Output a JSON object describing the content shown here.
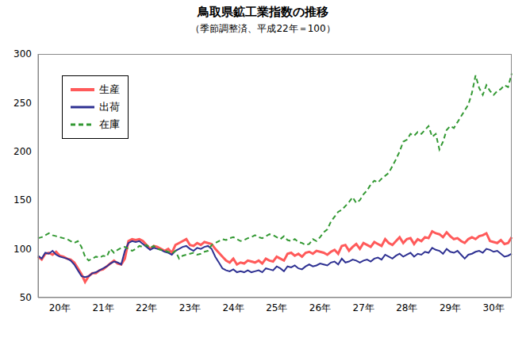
{
  "chart_data": {
    "type": "line",
    "title": "鳥取県鉱工業指数の推移",
    "subtitle": "（季節調整済、平成22年＝100）",
    "categories": [
      null,
      null,
      null,
      null,
      null,
      null,
      "20年",
      null,
      null,
      null,
      null,
      null,
      null,
      null,
      null,
      null,
      null,
      null,
      "21年",
      null,
      null,
      null,
      null,
      null,
      null,
      null,
      null,
      null,
      null,
      null,
      "22年",
      null,
      null,
      null,
      null,
      null,
      null,
      null,
      null,
      null,
      null,
      null,
      "23年",
      null,
      null,
      null,
      null,
      null,
      null,
      null,
      null,
      null,
      null,
      null,
      "24年",
      null,
      null,
      null,
      null,
      null,
      null,
      null,
      null,
      null,
      null,
      null,
      "25年",
      null,
      null,
      null,
      null,
      null,
      null,
      null,
      null,
      null,
      null,
      null,
      "26年",
      null,
      null,
      null,
      null,
      null,
      null,
      null,
      null,
      null,
      null,
      null,
      "27年",
      null,
      null,
      null,
      null,
      null,
      null,
      null,
      null,
      null,
      null,
      null,
      "28年",
      null,
      null,
      null,
      null,
      null,
      null,
      null,
      null,
      null,
      null,
      null,
      "29年",
      null,
      null,
      null,
      null,
      null,
      null,
      null,
      null,
      null,
      null,
      null,
      "30年",
      null,
      null,
      null,
      null,
      null
    ],
    "series": [
      {
        "name": "生産",
        "color": "#ff5a5a",
        "line_style": "solid",
        "values": [
          92,
          89,
          95,
          96,
          94,
          97,
          93,
          92,
          90,
          89,
          86,
          80,
          74,
          66,
          72,
          75,
          75,
          78,
          79,
          82,
          85,
          88,
          85,
          84,
          90,
          108,
          110,
          109,
          110,
          108,
          104,
          100,
          103,
          102,
          100,
          98,
          100,
          96,
          104,
          106,
          108,
          110,
          104,
          103,
          106,
          104,
          107,
          106,
          105,
          100,
          96,
          92,
          88,
          86,
          90,
          84,
          86,
          85,
          88,
          87,
          86,
          88,
          85,
          90,
          88,
          87,
          92,
          90,
          88,
          95,
          96,
          93,
          95,
          92,
          96,
          97,
          95,
          98,
          97,
          96,
          94,
          97,
          99,
          95,
          103,
          104,
          98,
          102,
          105,
          100,
          106,
          104,
          102,
          107,
          105,
          103,
          110,
          106,
          104,
          108,
          112,
          106,
          110,
          111,
          105,
          110,
          108,
          112,
          111,
          118,
          116,
          115,
          112,
          117,
          113,
          110,
          111,
          108,
          106,
          110,
          112,
          110,
          113,
          114,
          116,
          108,
          107,
          106,
          109,
          105,
          106,
          112
        ]
      },
      {
        "name": "出荷",
        "color": "#2e3192",
        "line_style": "solid",
        "values": [
          93,
          90,
          96,
          95,
          98,
          94,
          92,
          91,
          90,
          88,
          84,
          78,
          72,
          71,
          72,
          75,
          76,
          78,
          80,
          82,
          85,
          87,
          86,
          84,
          98,
          106,
          108,
          107,
          108,
          105,
          102,
          99,
          101,
          100,
          99,
          97,
          96,
          94,
          98,
          100,
          102,
          103,
          100,
          98,
          101,
          100,
          102,
          103,
          100,
          92,
          86,
          80,
          78,
          77,
          79,
          76,
          77,
          76,
          78,
          76,
          77,
          78,
          76,
          80,
          79,
          78,
          82,
          80,
          77,
          82,
          81,
          83,
          80,
          79,
          82,
          84,
          82,
          83,
          85,
          84,
          83,
          86,
          87,
          84,
          90,
          86,
          87,
          89,
          88,
          86,
          88,
          89,
          87,
          90,
          91,
          89,
          94,
          92,
          90,
          93,
          95,
          92,
          94,
          96,
          92,
          95,
          94,
          97,
          96,
          101,
          99,
          98,
          95,
          100,
          97,
          96,
          98,
          94,
          90,
          94,
          95,
          97,
          98,
          96,
          100,
          99,
          97,
          98,
          95,
          92,
          93,
          95
        ]
      },
      {
        "name": "在庫",
        "color": "#339933",
        "line_style": "dashed",
        "values": [
          111,
          112,
          114,
          116,
          114,
          113,
          112,
          111,
          110,
          108,
          106,
          108,
          102,
          92,
          88,
          90,
          92,
          91,
          93,
          92,
          100,
          96,
          99,
          101,
          102,
          100,
          98,
          100,
          103,
          102,
          104,
          101,
          103,
          100,
          99,
          98,
          97,
          95,
          98,
          90,
          93,
          94,
          95,
          96,
          94,
          95,
          97,
          98,
          104,
          106,
          108,
          110,
          109,
          111,
          112,
          110,
          108,
          109,
          111,
          112,
          114,
          112,
          111,
          113,
          115,
          114,
          112,
          110,
          113,
          109,
          108,
          110,
          107,
          106,
          104,
          105,
          110,
          108,
          112,
          117,
          120,
          128,
          133,
          138,
          140,
          144,
          148,
          153,
          147,
          150,
          156,
          160,
          166,
          170,
          168,
          172,
          175,
          178,
          185,
          192,
          200,
          210,
          212,
          218,
          216,
          220,
          218,
          222,
          226,
          215,
          218,
          202,
          210,
          222,
          226,
          224,
          230,
          236,
          242,
          248,
          260,
          278,
          265,
          258,
          268,
          262,
          258,
          262,
          264,
          268,
          266,
          280
        ]
      }
    ],
    "ylim": [
      50,
      300
    ],
    "yticks": [
      50,
      100,
      150,
      200,
      250,
      300
    ],
    "grid": false,
    "legend": "top-left"
  }
}
